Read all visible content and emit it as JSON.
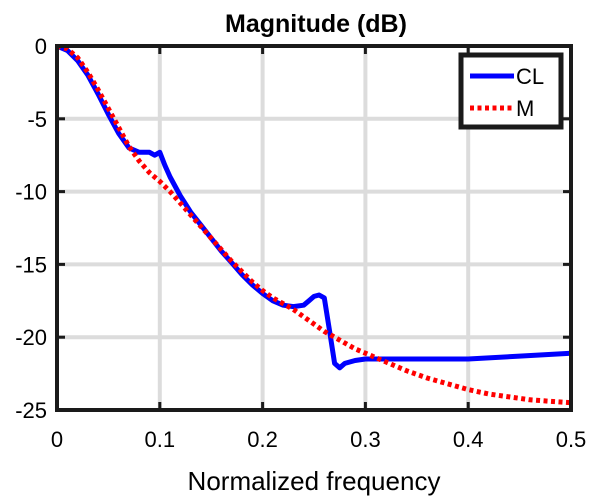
{
  "chart_data": {
    "type": "line",
    "title": "Magnitude (dB)",
    "xlabel": "Normalized frequency",
    "ylabel": "",
    "xlim": [
      0,
      0.5
    ],
    "ylim": [
      -25,
      0
    ],
    "xticks": [
      0,
      0.1,
      0.2,
      0.3,
      0.4,
      0.5
    ],
    "xtick_labels": [
      "0",
      "0.1",
      "0.2",
      "0.3",
      "0.4",
      "0.5"
    ],
    "yticks": [
      0,
      -5,
      -10,
      -15,
      -20,
      -25
    ],
    "ytick_labels": [
      "0",
      "-5",
      "-10",
      "-15",
      "-20",
      "-25"
    ],
    "grid": true,
    "legend_position": "top-right",
    "series": [
      {
        "name": "CL",
        "color": "#0000ff",
        "style": "solid",
        "x": [
          0,
          0.01,
          0.02,
          0.03,
          0.04,
          0.05,
          0.06,
          0.07,
          0.08,
          0.09,
          0.095,
          0.1,
          0.105,
          0.11,
          0.12,
          0.13,
          0.14,
          0.15,
          0.16,
          0.17,
          0.18,
          0.19,
          0.2,
          0.21,
          0.22,
          0.23,
          0.24,
          0.245,
          0.25,
          0.255,
          0.26,
          0.265,
          0.27,
          0.275,
          0.28,
          0.29,
          0.3,
          0.32,
          0.35,
          0.4,
          0.45,
          0.5
        ],
        "y": [
          0,
          -0.3,
          -1.0,
          -2.0,
          -3.3,
          -4.7,
          -6.0,
          -7.0,
          -7.3,
          -7.3,
          -7.5,
          -7.3,
          -8.2,
          -9.0,
          -10.3,
          -11.4,
          -12.3,
          -13.2,
          -14.1,
          -14.9,
          -15.7,
          -16.4,
          -17.0,
          -17.5,
          -17.8,
          -17.9,
          -17.8,
          -17.5,
          -17.2,
          -17.1,
          -17.3,
          -19.5,
          -21.8,
          -22.1,
          -21.8,
          -21.6,
          -21.5,
          -21.5,
          -21.5,
          -21.5,
          -21.3,
          -21.1
        ]
      },
      {
        "name": "M",
        "color": "#ff0000",
        "style": "dotted",
        "x": [
          0,
          0.01,
          0.02,
          0.03,
          0.04,
          0.05,
          0.06,
          0.07,
          0.08,
          0.09,
          0.1,
          0.11,
          0.12,
          0.13,
          0.14,
          0.15,
          0.16,
          0.17,
          0.18,
          0.19,
          0.2,
          0.21,
          0.22,
          0.23,
          0.24,
          0.25,
          0.26,
          0.27,
          0.28,
          0.29,
          0.3,
          0.32,
          0.34,
          0.36,
          0.38,
          0.4,
          0.42,
          0.44,
          0.46,
          0.48,
          0.5
        ],
        "y": [
          0,
          -0.2,
          -0.8,
          -1.8,
          -3.0,
          -4.3,
          -5.6,
          -6.9,
          -7.9,
          -8.7,
          -9.3,
          -10.0,
          -10.8,
          -11.6,
          -12.4,
          -13.2,
          -14.0,
          -14.8,
          -15.5,
          -16.2,
          -16.8,
          -17.3,
          -17.7,
          -18.1,
          -18.6,
          -19.1,
          -19.6,
          -20.0,
          -20.4,
          -20.8,
          -21.1,
          -21.7,
          -22.3,
          -22.8,
          -23.2,
          -23.6,
          -23.9,
          -24.1,
          -24.3,
          -24.4,
          -24.5
        ]
      }
    ]
  }
}
